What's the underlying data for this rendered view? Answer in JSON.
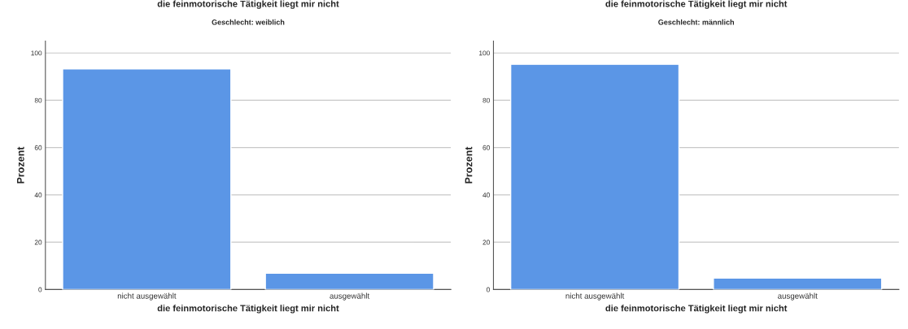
{
  "chart_data": [
    {
      "type": "bar",
      "title": "die feinmotorische Tätigkeit liegt mir nicht",
      "subtitle": "Geschlecht: weiblich",
      "xlabel": "die feinmotorische Tätigkeit liegt mir nicht",
      "ylabel": "Prozent",
      "categories": [
        "nicht ausgewählt",
        "ausgewählt"
      ],
      "values": [
        93.3,
        6.9
      ],
      "color": "#5b96e6",
      "ylim": [
        0,
        105
      ],
      "yticks": [
        0,
        20,
        40,
        60,
        80,
        100
      ],
      "grid": "y"
    },
    {
      "type": "bar",
      "title": "die feinmotorische Tätigkeit liegt mir nicht",
      "subtitle": "Geschlecht: männlich",
      "xlabel": "die feinmotorische Tätigkeit liegt mir nicht",
      "ylabel": "Prozent",
      "categories": [
        "nicht ausgewählt",
        "ausgewählt"
      ],
      "values": [
        95.2,
        4.8
      ],
      "color": "#5b96e6",
      "ylim": [
        0,
        105
      ],
      "yticks": [
        0,
        20,
        40,
        60,
        80,
        100
      ],
      "grid": "y"
    }
  ]
}
